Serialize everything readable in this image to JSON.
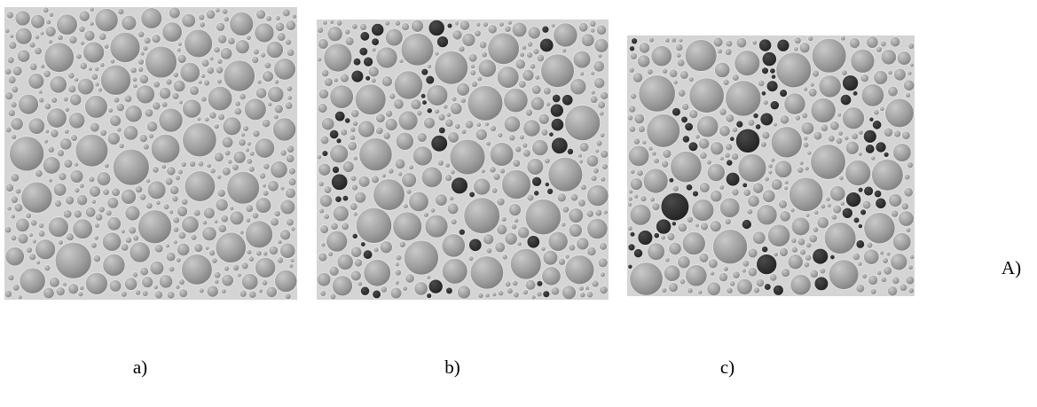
{
  "labels": {
    "a": "a)",
    "b": "b)",
    "c": "c)",
    "group": "A)"
  }
}
